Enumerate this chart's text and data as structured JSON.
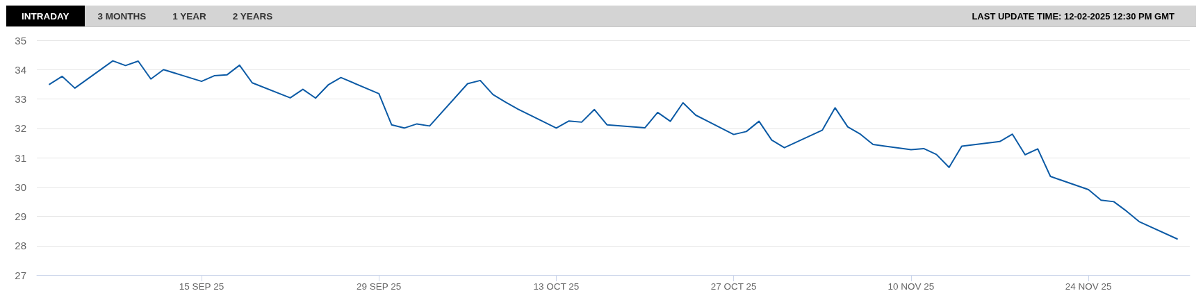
{
  "chart_data": {
    "type": "line",
    "subtitle": "LAST UPDATE TIME: 12-02-2025 12:30 PM GMT",
    "annotations": [
      "INTRADAY",
      "3 MONTHS",
      "1 YEAR",
      "2 YEARS"
    ],
    "x": [
      "2025-09-03",
      "2025-09-04",
      "2025-09-05",
      "2025-09-08",
      "2025-09-09",
      "2025-09-10",
      "2025-09-11",
      "2025-09-12",
      "2025-09-15",
      "2025-09-16",
      "2025-09-17",
      "2025-09-18",
      "2025-09-19",
      "2025-09-22",
      "2025-09-23",
      "2025-09-24",
      "2025-09-25",
      "2025-09-26",
      "2025-09-29",
      "2025-09-30",
      "2025-10-01",
      "2025-10-02",
      "2025-10-03",
      "2025-10-06",
      "2025-10-07",
      "2025-10-08",
      "2025-10-09",
      "2025-10-10",
      "2025-10-13",
      "2025-10-14",
      "2025-10-15",
      "2025-10-16",
      "2025-10-17",
      "2025-10-20",
      "2025-10-21",
      "2025-10-22",
      "2025-10-23",
      "2025-10-24",
      "2025-10-27",
      "2025-10-28",
      "2025-10-29",
      "2025-10-30",
      "2025-10-31",
      "2025-11-03",
      "2025-11-04",
      "2025-11-05",
      "2025-11-06",
      "2025-11-07",
      "2025-11-10",
      "2025-11-11",
      "2025-11-12",
      "2025-11-13",
      "2025-11-14",
      "2025-11-17",
      "2025-11-18",
      "2025-11-19",
      "2025-11-20",
      "2025-11-21",
      "2025-11-24",
      "2025-11-25",
      "2025-11-26",
      "2025-11-27",
      "2025-11-28",
      "2025-12-01"
    ],
    "series": [
      {
        "color": "#0b5aa5",
        "values": [
          33.5,
          33.77,
          33.37,
          34.3,
          34.14,
          34.29,
          33.68,
          34.0,
          33.6,
          33.79,
          33.82,
          34.15,
          33.55,
          33.04,
          33.33,
          33.03,
          33.48,
          33.73,
          33.18,
          32.12,
          32.01,
          32.15,
          32.08,
          33.52,
          33.63,
          33.15,
          32.89,
          32.65,
          32.01,
          32.25,
          32.21,
          32.64,
          32.12,
          32.02,
          32.54,
          32.24,
          32.87,
          32.45,
          31.79,
          31.89,
          32.24,
          31.6,
          31.34,
          31.94,
          32.7,
          32.05,
          31.8,
          31.45,
          31.27,
          31.31,
          31.11,
          30.67,
          31.39,
          31.55,
          31.8,
          31.1,
          31.3,
          30.36,
          29.91,
          29.55,
          29.5,
          29.18,
          28.82,
          28.23
        ]
      }
    ],
    "xlim": [
      "2025-09-02",
      "2025-12-02"
    ],
    "xticks": [
      {
        "value": "2025-09-15",
        "label": "15 SEP 25"
      },
      {
        "value": "2025-09-29",
        "label": "29 SEP 25"
      },
      {
        "value": "2025-10-13",
        "label": "13 OCT 25"
      },
      {
        "value": "2025-10-27",
        "label": "27 OCT 25"
      },
      {
        "value": "2025-11-10",
        "label": "10 NOV 25"
      },
      {
        "value": "2025-11-24",
        "label": "24 NOV 25"
      }
    ],
    "ylim": [
      27,
      35
    ],
    "yticks": [
      27,
      28,
      29,
      30,
      31,
      32,
      33,
      34,
      35
    ],
    "grid": "y",
    "marker": "none",
    "line_style": "solid"
  }
}
